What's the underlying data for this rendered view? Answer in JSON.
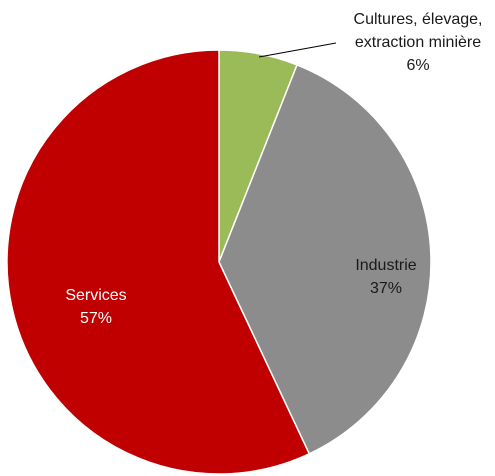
{
  "chart_data": {
    "type": "pie",
    "title": "",
    "slices": [
      {
        "name": "Cultures, élevage, extraction minière",
        "value": 6,
        "label_lines": [
          "Cultures, élevage,",
          "extraction minière"
        ],
        "pct_label": "6%",
        "color": "#9bbb59",
        "label_color": "#1a1a1a"
      },
      {
        "name": "Industrie",
        "value": 37,
        "label_lines": [
          "Industrie"
        ],
        "pct_label": "37%",
        "color": "#8c8c8c",
        "label_color": "#1a1a1a"
      },
      {
        "name": "Services",
        "value": 57,
        "label_lines": [
          "Services"
        ],
        "pct_label": "57%",
        "color": "#c00000",
        "label_color": "#ffffff"
      }
    ]
  }
}
